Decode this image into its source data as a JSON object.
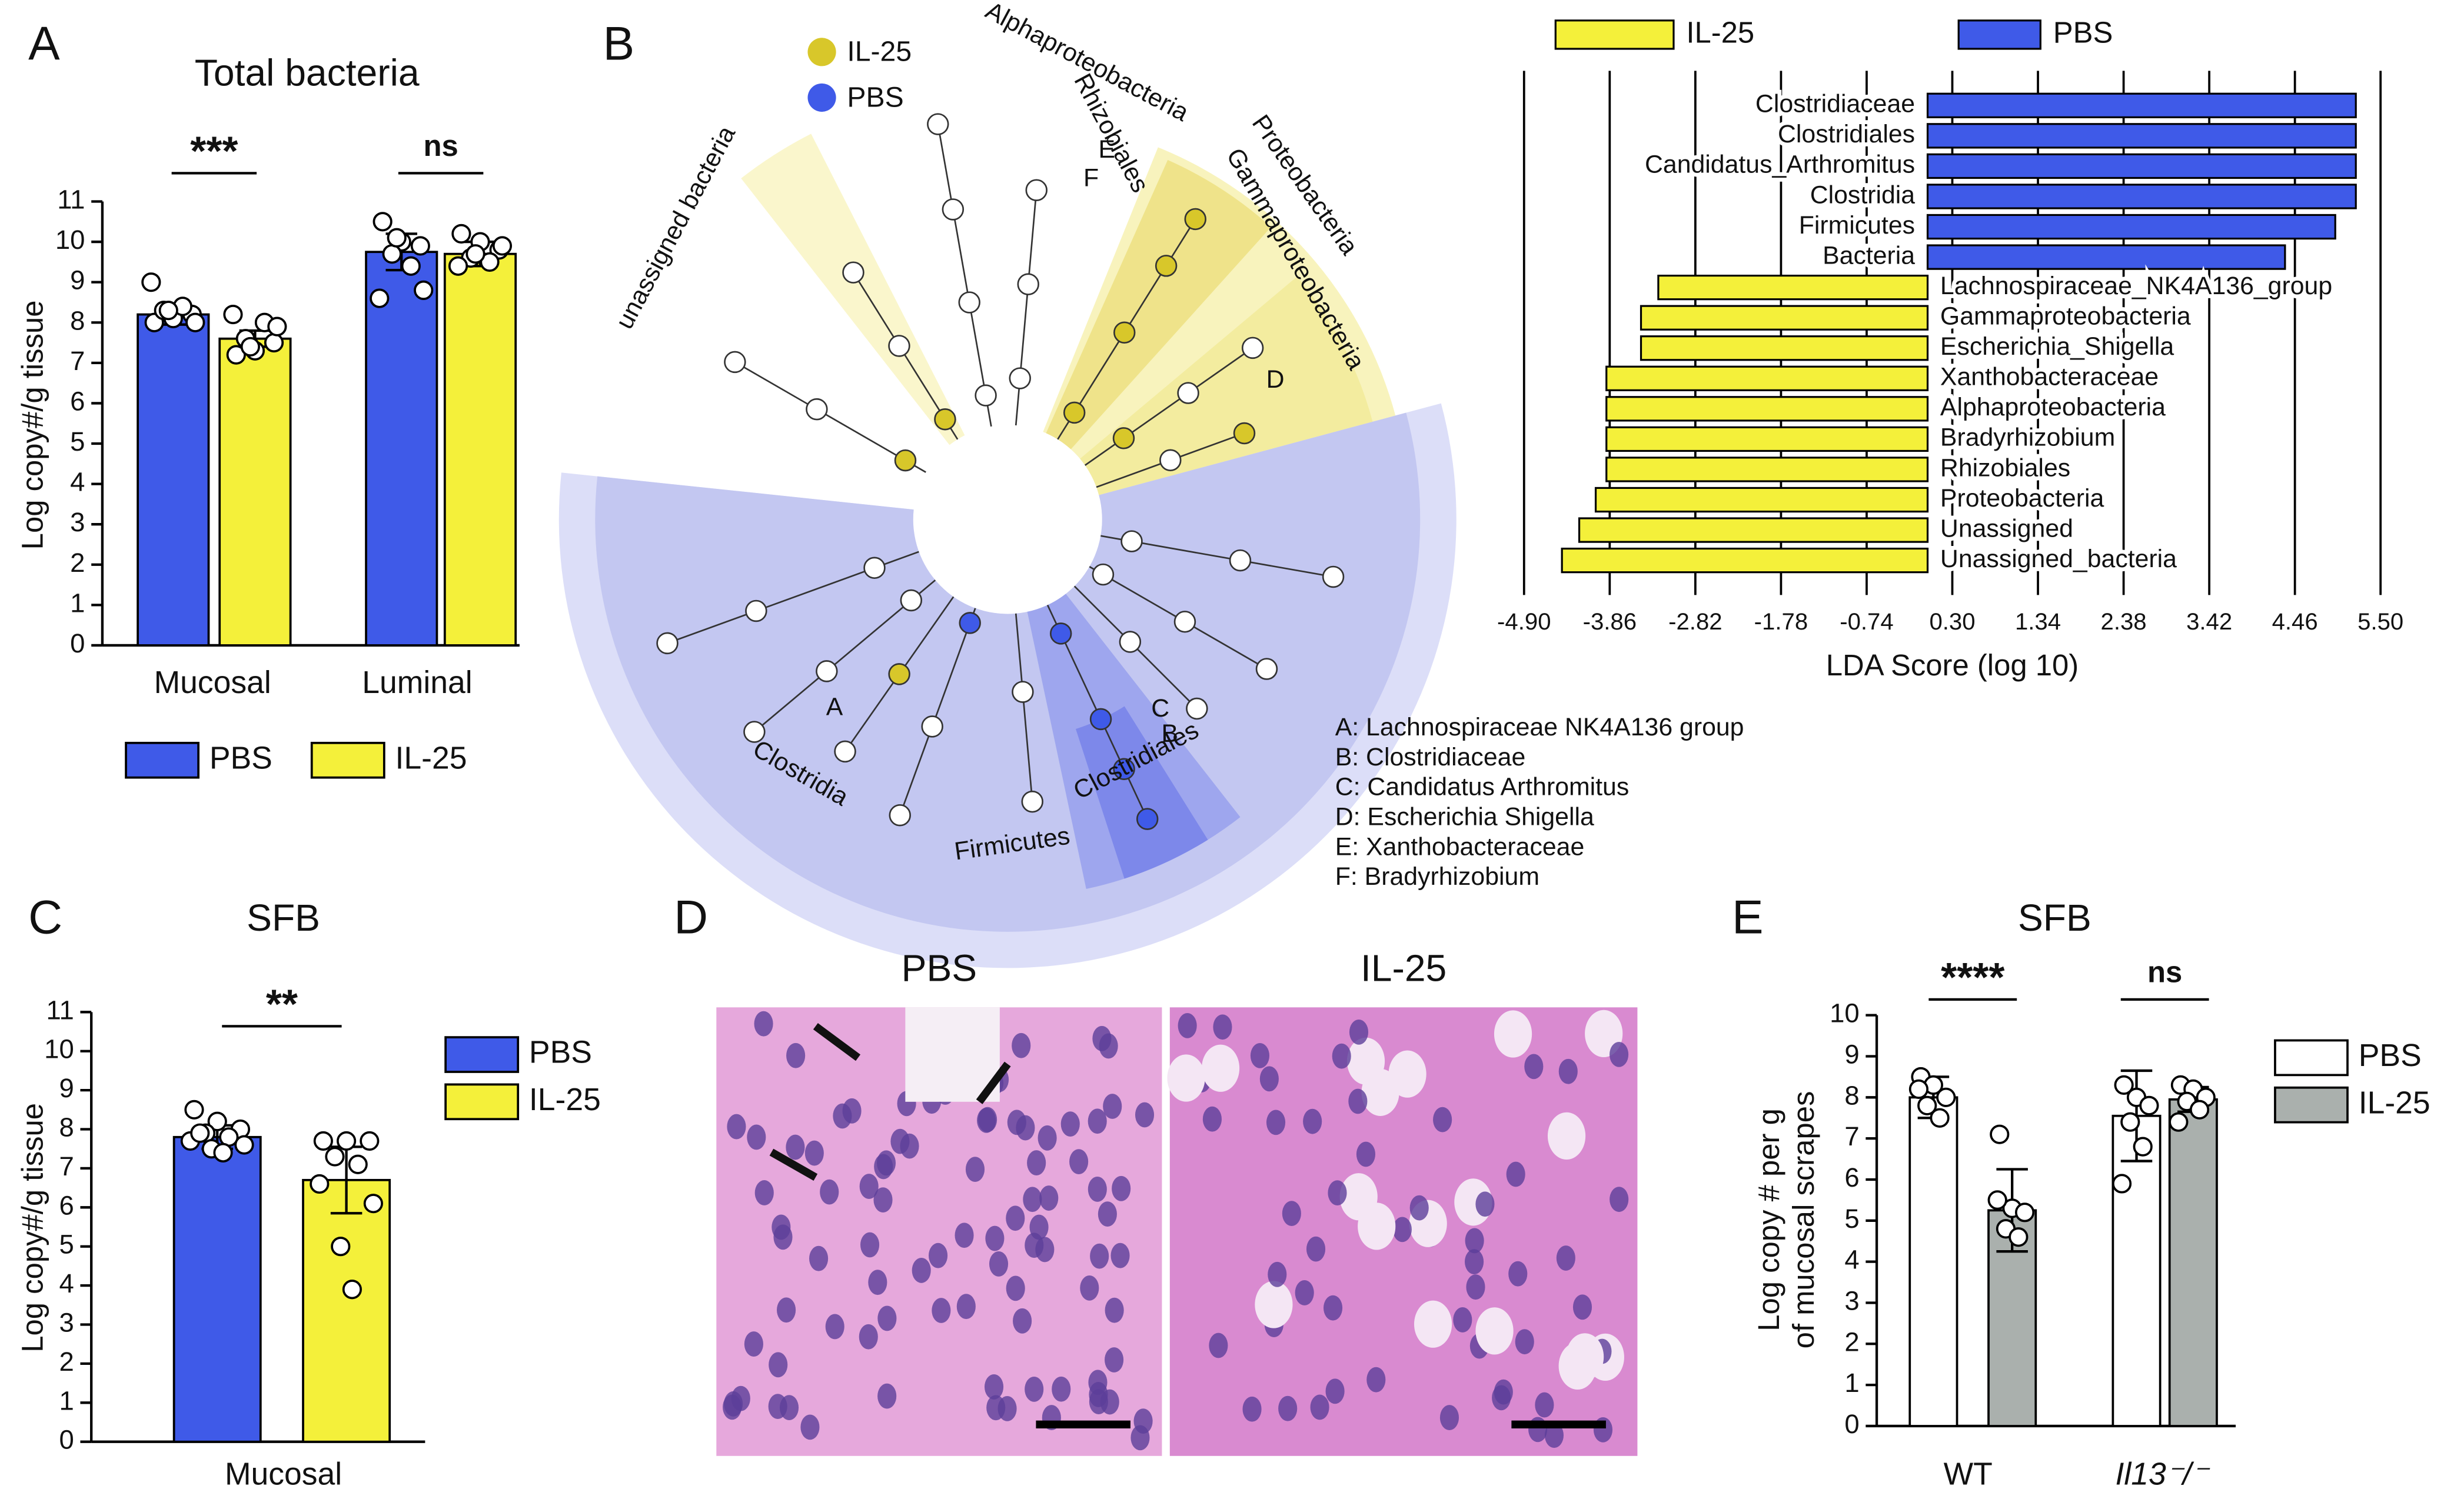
{
  "panel_labels": [
    "A",
    "B",
    "C",
    "D",
    "E"
  ],
  "chart_data": [
    {
      "type": "bar",
      "title": "Total bacteria",
      "y_label": "Log copy#/g tissue",
      "categories": [
        "Mucosal",
        "Luminal"
      ],
      "series": [
        {
          "name": "PBS",
          "color": "#3f5ae8",
          "values": [
            8.2,
            9.75
          ],
          "errors": [
            0.25,
            0.45
          ],
          "points": [
            [
              8.0,
              8.1,
              8.2,
              8.3,
              8.4,
              9.0,
              8.0,
              8.3
            ],
            [
              10.5,
              10.0,
              9.9,
              9.7,
              9.4,
              8.6,
              8.8,
              10.1
            ]
          ]
        },
        {
          "name": "IL-25",
          "color": "#f4f03a",
          "values": [
            7.6,
            9.7
          ],
          "errors": [
            0.2,
            0.3
          ],
          "points": [
            [
              7.2,
              7.3,
              7.5,
              7.6,
              8.0,
              8.2,
              7.9,
              7.4
            ],
            [
              10.2,
              10.0,
              9.8,
              9.6,
              9.5,
              9.4,
              9.9,
              9.7
            ]
          ]
        }
      ],
      "annotations": [
        "***",
        "ns"
      ],
      "ylim": [
        0,
        11
      ],
      "yticks": [
        0,
        1,
        2,
        3,
        4,
        5,
        6,
        7,
        8,
        9,
        10,
        11
      ],
      "legend": "bottom"
    },
    {
      "type": "hbar",
      "x_label": "LDA Score (log 10)",
      "categories": [
        "Clostridiaceae",
        "Clostridiales",
        "Candidatus_Arthromitus",
        "Clostridia",
        "Firmicutes",
        "Bacteria",
        "Lachnospiraceae_NK4A136_group",
        "Gammaproteobacteria",
        "Escherichia_Shigella",
        "Xanthobacteraceae",
        "Alphaproteobacteria",
        "Bradyrhizobium",
        "Rhizobiales",
        "Proteobacteria",
        "Unassigned",
        "Unassigned_bacteria"
      ],
      "series": [
        {
          "name": "IL-25",
          "color": "#f4f03a",
          "values": [
            null,
            null,
            null,
            null,
            null,
            null,
            -3.27,
            -3.48,
            -3.48,
            -3.9,
            -3.9,
            -3.9,
            -3.9,
            -4.03,
            -4.23,
            -4.44
          ]
        },
        {
          "name": "PBS",
          "color": "#3f5ae8",
          "values": [
            5.2,
            5.2,
            5.2,
            5.2,
            4.95,
            4.34,
            null,
            null,
            null,
            null,
            null,
            null,
            null,
            null,
            null,
            null
          ]
        }
      ],
      "xlim": [
        -4.9,
        5.5
      ],
      "xticks": [
        {
          "value": -4.9,
          "label": "-4.90"
        },
        -3.86,
        -2.82,
        -1.78,
        -0.74,
        {
          "value": 0.3,
          "label": "0.30"
        },
        1.34,
        2.38,
        3.42,
        4.46,
        {
          "value": 5.5,
          "label": "5.50"
        }
      ],
      "grid": true,
      "legend": "top"
    },
    {
      "type": "bar",
      "title": "SFB",
      "y_label": "Log copy#/g tissue",
      "categories": [
        "Mucosal"
      ],
      "series": [
        {
          "name": "PBS",
          "color": "#3f5ae8",
          "values": [
            7.8
          ],
          "errors": [
            0.3
          ],
          "points": [
            [
              8.5,
              8.2,
              8.0,
              7.9,
              7.8,
              7.7,
              7.6,
              7.5,
              7.4,
              7.9
            ]
          ]
        },
        {
          "name": "IL-25",
          "color": "#f4f03a",
          "values": [
            6.7
          ],
          "errors": [
            0.85
          ],
          "points": [
            [
              7.7,
              7.7,
              7.7,
              7.3,
              7.1,
              6.6,
              6.1,
              5.0,
              3.9
            ]
          ]
        }
      ],
      "annotations": [
        "**"
      ],
      "ylim": [
        0,
        11
      ],
      "yticks": [
        0,
        1,
        2,
        3,
        4,
        5,
        6,
        7,
        8,
        9,
        10,
        11
      ],
      "legend": "right"
    },
    {
      "type": "bar",
      "title": "SFB",
      "y_label": [
        "Log copy # per g",
        "of mucosal scrapes"
      ],
      "categories": [
        "WT",
        "Il13⁻/⁻"
      ],
      "series": [
        {
          "name": "PBS",
          "color": "#ffffff",
          "values": [
            8.0,
            7.55
          ],
          "errors": [
            0.5,
            1.1
          ],
          "points": [
            [
              8.5,
              8.3,
              8.0,
              7.8,
              7.5,
              8.2
            ],
            [
              8.3,
              8.0,
              7.8,
              7.4,
              6.8,
              5.9
            ]
          ]
        },
        {
          "name": "IL-25",
          "color": "#aab0ad",
          "values": [
            5.25,
            7.95
          ],
          "errors": [
            1.0,
            0.3
          ],
          "points": [
            [
              7.1,
              5.3,
              5.2,
              4.8,
              4.6,
              5.5
            ],
            [
              8.3,
              8.2,
              8.0,
              7.9,
              7.7,
              7.4
            ]
          ]
        }
      ],
      "annotations": [
        "****",
        "ns"
      ],
      "ylim": [
        0,
        10
      ],
      "yticks": [
        0,
        1,
        2,
        3,
        4,
        5,
        6,
        7,
        8,
        9,
        10
      ],
      "legend": "right"
    }
  ],
  "cladogram": {
    "legend": [
      {
        "label": "IL-25",
        "color": "#d8c72a"
      },
      {
        "label": "PBS",
        "color": "#3f5ae8"
      }
    ],
    "clades": [
      "unassigned bacteria",
      "Alphaproteobacteria",
      "Rhizobiales",
      "Proteobacteria",
      "Gammaproteobacteria",
      "Clostridia",
      "Firmicutes",
      "Clostridiales"
    ],
    "nodes": [
      "A",
      "B",
      "C",
      "D",
      "E",
      "F"
    ],
    "key": [
      "A: Lachnospiraceae NK4A136 group",
      "B: Clostridiaceae",
      "C: Candidatus Arthromitus",
      "D: Escherichia Shigella",
      "E: Xanthobacteraceae",
      "F: Bradyrhizobium"
    ]
  },
  "micrographs": {
    "titles": [
      "PBS",
      "IL-25"
    ]
  }
}
